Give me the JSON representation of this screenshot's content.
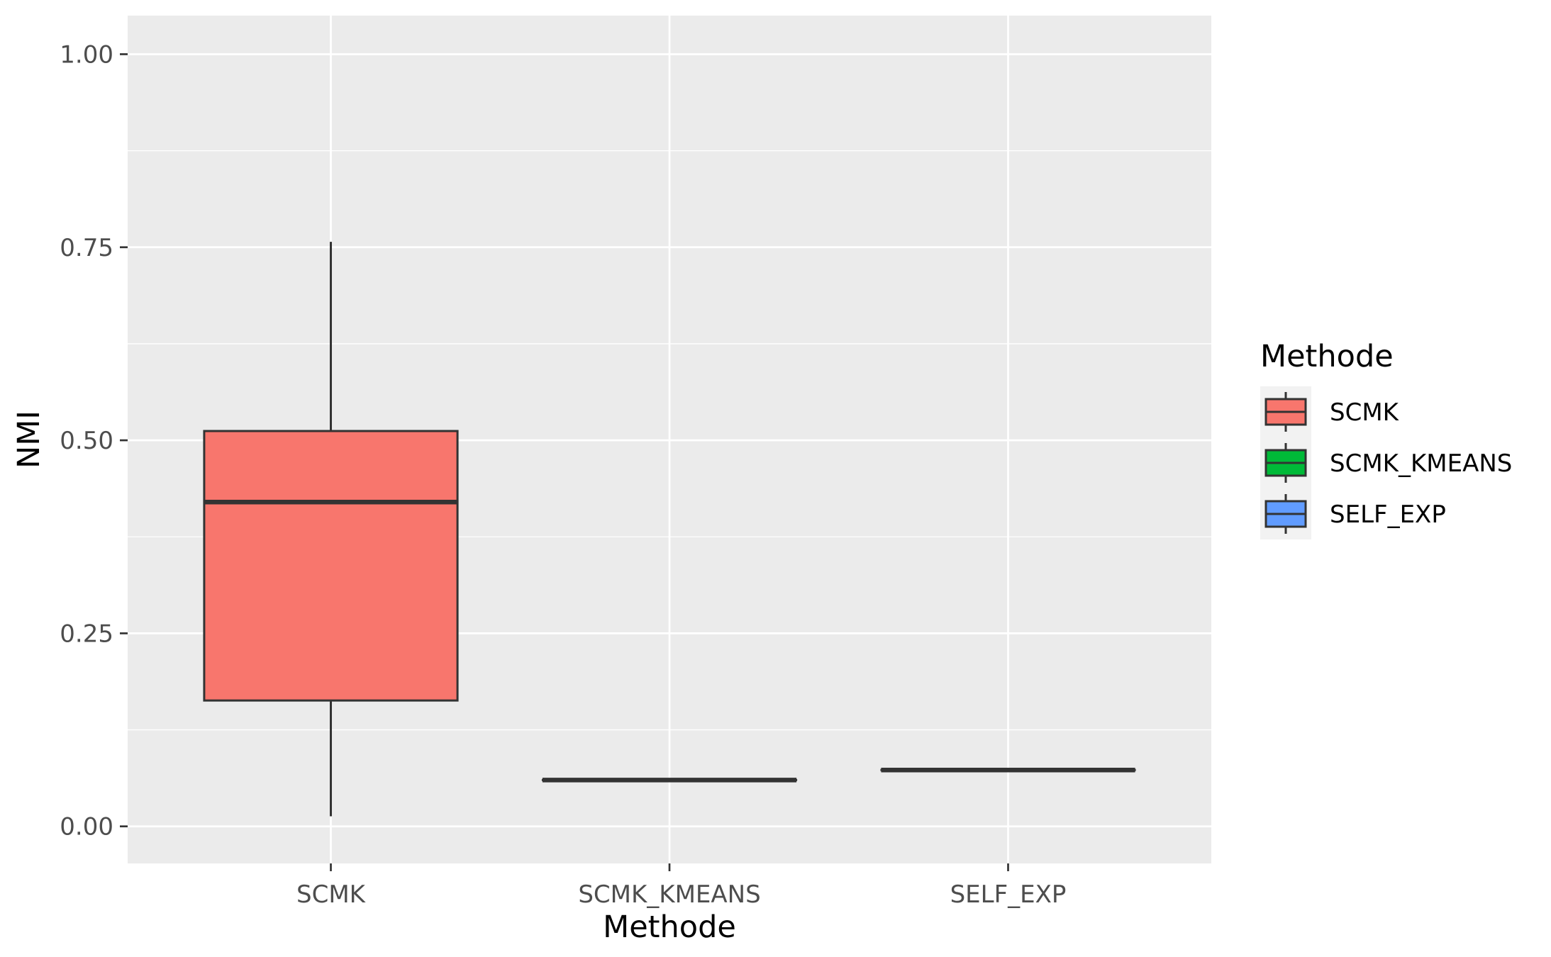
{
  "chart_data": {
    "type": "boxplot",
    "xlabel": "Methode",
    "ylabel": "NMI",
    "ylim": [
      -0.048,
      1.05
    ],
    "y_ticks": [
      "0.00",
      "0.25",
      "0.50",
      "0.75",
      "1.00"
    ],
    "y_tick_values": [
      0,
      0.25,
      0.5,
      0.75,
      1.0
    ],
    "y_minor_ticks": [
      0.125,
      0.375,
      0.625,
      0.875
    ],
    "categories": [
      "SCMK",
      "SCMK_KMEANS",
      "SELF_EXP"
    ],
    "boxes": [
      {
        "name": "SCMK",
        "min": 0.013,
        "q1": 0.163,
        "median": 0.42,
        "q3": 0.512,
        "max": 0.757,
        "color": "#F8766D"
      },
      {
        "name": "SCMK_KMEANS",
        "min": 0.06,
        "q1": 0.06,
        "median": 0.06,
        "q3": 0.06,
        "max": 0.06,
        "color": "#00BA38"
      },
      {
        "name": "SELF_EXP",
        "min": 0.073,
        "q1": 0.073,
        "median": 0.073,
        "q3": 0.073,
        "max": 0.073,
        "color": "#619CFF"
      }
    ],
    "grid": true,
    "panel_background": "#EBEBEB",
    "grid_color": "#FFFFFF",
    "legend": {
      "title": "Methode",
      "position": "right",
      "entries": [
        "SCMK",
        "SCMK_KMEANS",
        "SELF_EXP"
      ]
    }
  }
}
